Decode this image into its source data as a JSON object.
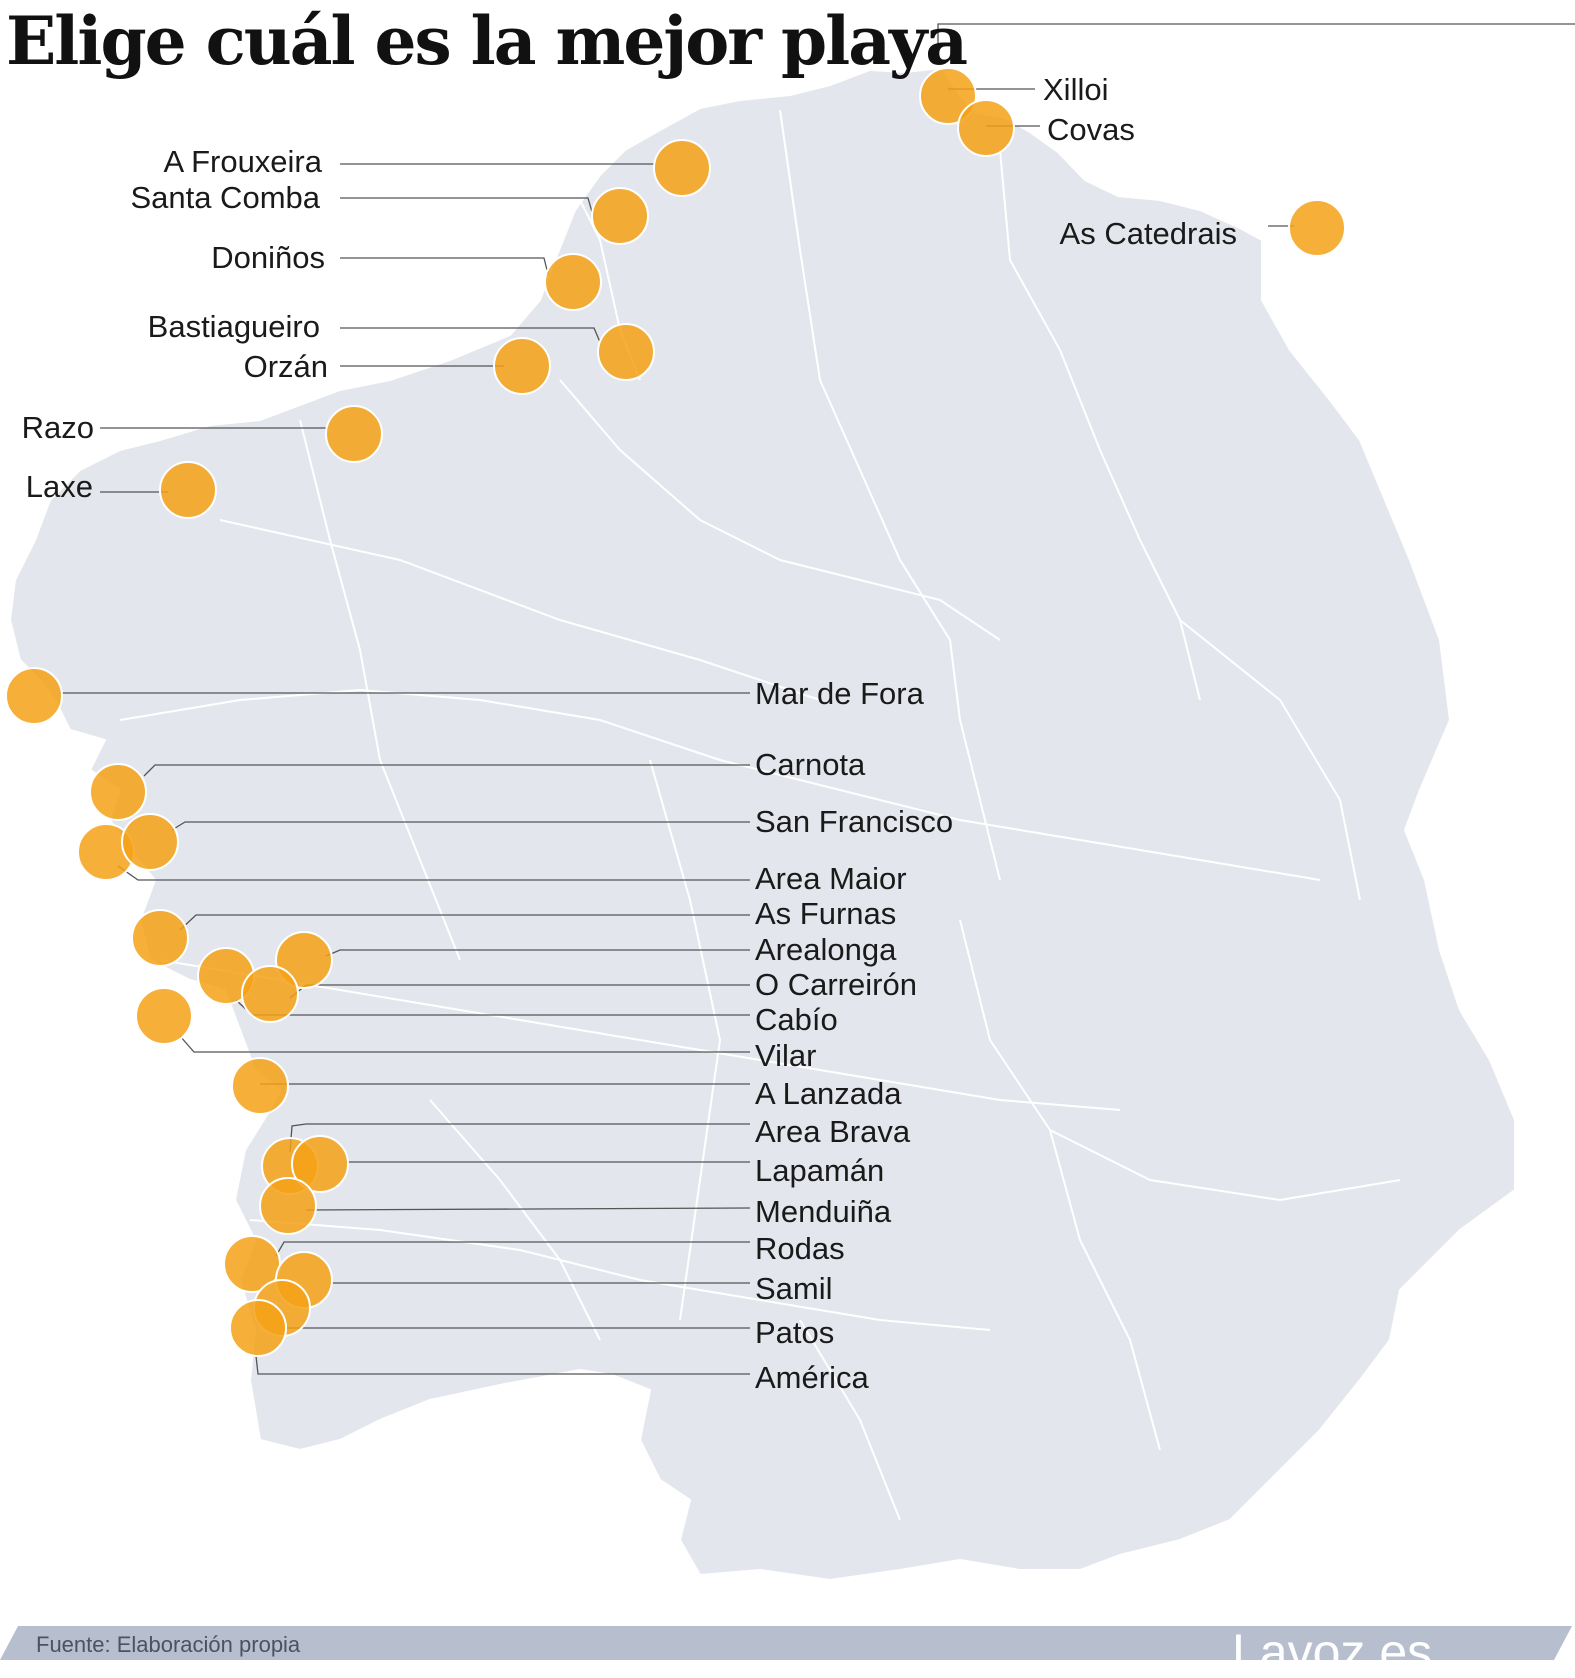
{
  "title": "Elige cuál es la mejor playa",
  "colors": {
    "marker": "#f5a116",
    "land": "#e3e6ec",
    "border": "#ffffff",
    "footer_bar": "#b7bfcf"
  },
  "beaches": [
    {
      "name": "Xilloi"
    },
    {
      "name": "Covas"
    },
    {
      "name": "A Frouxeira"
    },
    {
      "name": "Santa Comba"
    },
    {
      "name": "As Catedrais"
    },
    {
      "name": "Doniños"
    },
    {
      "name": "Bastiagueiro"
    },
    {
      "name": "Orzán"
    },
    {
      "name": "Razo"
    },
    {
      "name": "Laxe"
    },
    {
      "name": "Mar de Fora"
    },
    {
      "name": "Carnota"
    },
    {
      "name": "San Francisco"
    },
    {
      "name": "Area Maior"
    },
    {
      "name": "As Furnas"
    },
    {
      "name": "Arealonga"
    },
    {
      "name": "O Carreirón"
    },
    {
      "name": "Cabío"
    },
    {
      "name": "Vilar"
    },
    {
      "name": "A Lanzada"
    },
    {
      "name": "Area Brava"
    },
    {
      "name": "Lapamán"
    },
    {
      "name": "Menduiña"
    },
    {
      "name": "Rodas"
    },
    {
      "name": "Samil"
    },
    {
      "name": "Patos"
    },
    {
      "name": "América"
    }
  ],
  "footer": {
    "source": "Fuente: Elaboración propia",
    "brand": "Lavoz.es"
  }
}
